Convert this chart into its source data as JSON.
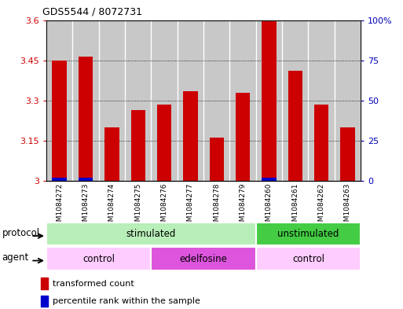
{
  "title": "GDS5544 / 8072731",
  "samples": [
    "GSM1084272",
    "GSM1084273",
    "GSM1084274",
    "GSM1084275",
    "GSM1084276",
    "GSM1084277",
    "GSM1084278",
    "GSM1084279",
    "GSM1084260",
    "GSM1084261",
    "GSM1084262",
    "GSM1084263"
  ],
  "transformed_count": [
    3.45,
    3.465,
    3.2,
    3.265,
    3.285,
    3.335,
    3.16,
    3.33,
    3.595,
    3.41,
    3.285,
    3.2
  ],
  "percentile_rank": [
    2,
    2,
    0,
    0,
    0,
    0,
    0,
    0,
    2,
    0,
    0,
    0
  ],
  "ylim_left": [
    3.0,
    3.6
  ],
  "ylim_right": [
    0,
    100
  ],
  "yticks_left": [
    3.0,
    3.15,
    3.3,
    3.45,
    3.6
  ],
  "ytick_labels_left": [
    "3",
    "3.15",
    "3.3",
    "3.45",
    "3.6"
  ],
  "yticks_right": [
    0,
    25,
    50,
    75,
    100
  ],
  "ytick_labels_right": [
    "0",
    "25",
    "50",
    "75",
    "100%"
  ],
  "bar_color_red": "#cc0000",
  "bar_color_blue": "#0000cc",
  "bar_width": 0.55,
  "col_bg_color": "#c8c8c8",
  "plot_bg_color": "#ffffff",
  "grid_linestyle": "dotted",
  "grid_color": "#000000",
  "tick_color_left": "#cc0000",
  "tick_color_right": "#0000bb",
  "protocol_stimulated_color": "#b8eeb8",
  "protocol_unstimulated_color": "#44cc44",
  "agent_control_color": "#ffccff",
  "agent_edelfosine_color": "#dd55dd",
  "legend_red_label": "transformed count",
  "legend_blue_label": "percentile rank within the sample",
  "protocol_row_label": "protocol",
  "agent_row_label": "agent"
}
